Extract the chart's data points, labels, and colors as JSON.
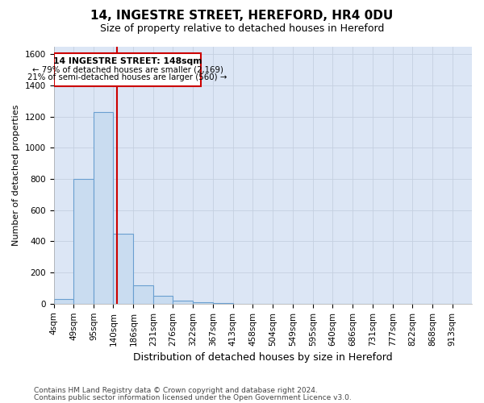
{
  "title": "14, INGESTRE STREET, HEREFORD, HR4 0DU",
  "subtitle": "Size of property relative to detached houses in Hereford",
  "xlabel": "Distribution of detached houses by size in Hereford",
  "ylabel": "Number of detached properties",
  "footer_line1": "Contains HM Land Registry data © Crown copyright and database right 2024.",
  "footer_line2": "Contains public sector information licensed under the Open Government Licence v3.0.",
  "bin_labels": [
    "4sqm",
    "49sqm",
    "95sqm",
    "140sqm",
    "186sqm",
    "231sqm",
    "276sqm",
    "322sqm",
    "367sqm",
    "413sqm",
    "458sqm",
    "504sqm",
    "549sqm",
    "595sqm",
    "640sqm",
    "686sqm",
    "731sqm",
    "777sqm",
    "822sqm",
    "868sqm",
    "913sqm"
  ],
  "bin_edges": [
    4,
    49,
    95,
    140,
    186,
    231,
    276,
    322,
    367,
    413,
    458,
    504,
    549,
    595,
    640,
    686,
    731,
    777,
    822,
    868,
    913,
    958
  ],
  "bar_heights": [
    30,
    800,
    1230,
    450,
    120,
    50,
    20,
    10,
    5,
    0,
    0,
    0,
    0,
    0,
    0,
    0,
    0,
    0,
    0,
    0,
    0
  ],
  "bar_color": "#c9dcf0",
  "bar_edge_color": "#6a9fd0",
  "vline_x": 148,
  "vline_color": "#cc0000",
  "ann_line1": "14 INGESTRE STREET: 148sqm",
  "ann_line2": "← 79% of detached houses are smaller (2,169)",
  "ann_line3": "21% of semi-detached houses are larger (560) →",
  "ann_box_edge_color": "#cc0000",
  "ann_box_face_color": "#ffffff",
  "grid_color": "#c5d0e0",
  "bg_color": "#dce6f5",
  "ylim": [
    0,
    1650
  ],
  "yticks": [
    0,
    200,
    400,
    600,
    800,
    1000,
    1200,
    1400,
    1600
  ],
  "title_fontsize": 11,
  "subtitle_fontsize": 9,
  "tick_fontsize": 7.5,
  "ylabel_fontsize": 8,
  "xlabel_fontsize": 9,
  "footer_fontsize": 6.5
}
